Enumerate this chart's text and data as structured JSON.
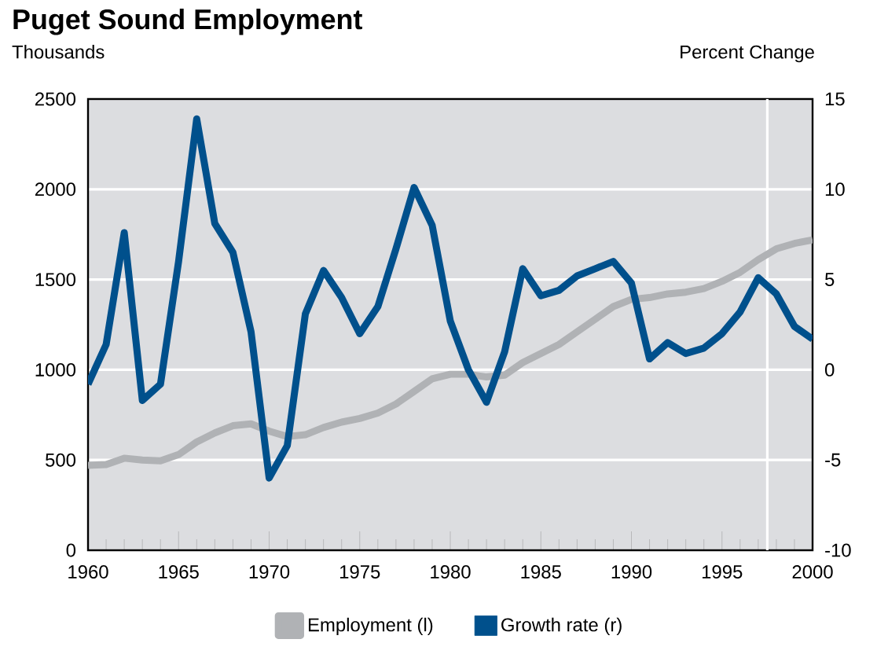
{
  "chart_data": {
    "type": "line",
    "title": "Puget Sound Employment",
    "ylabel": "Thousands",
    "y2label": "Percent Change",
    "x": [
      1960,
      1961,
      1962,
      1963,
      1964,
      1965,
      1966,
      1967,
      1968,
      1969,
      1970,
      1971,
      1972,
      1973,
      1974,
      1975,
      1976,
      1977,
      1978,
      1979,
      1980,
      1981,
      1982,
      1983,
      1984,
      1985,
      1986,
      1987,
      1988,
      1989,
      1990,
      1991,
      1992,
      1993,
      1994,
      1995,
      1996,
      1997,
      1998,
      1999,
      2000
    ],
    "series": [
      {
        "name": "Employment (l)",
        "color": "#b0b2b5",
        "values": [
          470,
          475,
          510,
          500,
          495,
          530,
          600,
          650,
          690,
          700,
          660,
          630,
          640,
          680,
          710,
          730,
          760,
          810,
          880,
          950,
          975,
          975,
          960,
          970,
          1040,
          1090,
          1140,
          1210,
          1280,
          1350,
          1390,
          1400,
          1420,
          1430,
          1450,
          1490,
          1540,
          1610,
          1670,
          1700,
          1720
        ]
      },
      {
        "name": "Growth rate (r)",
        "color": "#00508c",
        "axis": "y2",
        "values": [
          -0.8,
          1.4,
          7.6,
          -1.7,
          -0.8,
          6.0,
          13.9,
          8.1,
          6.5,
          2.1,
          -6.0,
          -4.2,
          3.1,
          5.5,
          4.0,
          2.0,
          3.5,
          6.7,
          10.1,
          8.0,
          2.7,
          0,
          -1.8,
          1.0,
          5.6,
          4.1,
          4.4,
          5.2,
          5.6,
          6.0,
          4.8,
          0.6,
          1.5,
          0.9,
          1.2,
          2.0,
          3.2,
          5.1,
          4.2,
          2.4,
          1.7
        ]
      }
    ],
    "xlim": [
      1960,
      2000
    ],
    "xticks": [
      1960,
      1965,
      1970,
      1975,
      1980,
      1985,
      1990,
      1995,
      2000
    ],
    "ylim": [
      0,
      2500
    ],
    "yticks": [
      0,
      500,
      1000,
      1500,
      2000,
      2500
    ],
    "y2lim": [
      -10,
      15
    ],
    "y2ticks": [
      -10,
      -5,
      0,
      5,
      10,
      15
    ],
    "ref_lines": [
      {
        "axis": "x",
        "value": 1997.5,
        "color": "#ffffff"
      }
    ],
    "grid": "y",
    "legend": "bottom",
    "marker": "none"
  }
}
